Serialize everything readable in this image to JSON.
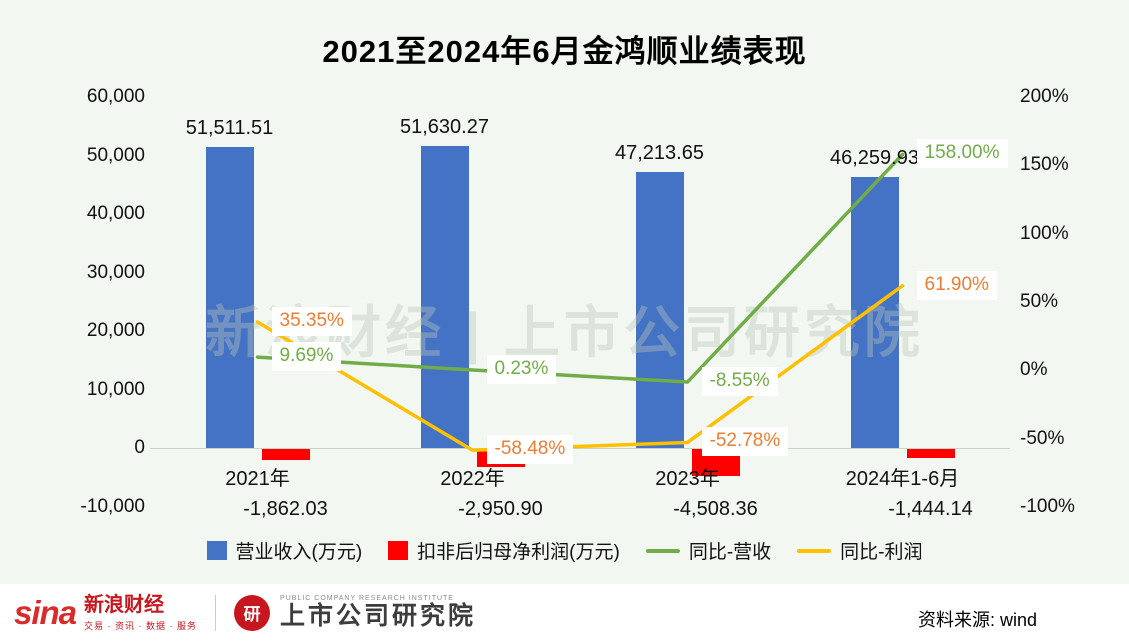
{
  "title": "2021至2024年6月金鸿顺业绩表现",
  "watermark": "新浪财经 | 上市公司研究院",
  "colors": {
    "background": "#f2f8f1",
    "revenue_bar": "#4472c4",
    "profit_bar": "#fe0000",
    "revenue_yoy_line": "#70ad47",
    "profit_yoy_line": "#ffc000",
    "revenue_yoy_label": "#70ad47",
    "profit_yoy_label": "#ed7d31"
  },
  "chart_data": {
    "type": "bar",
    "title": "2021至2024年6月金鸿顺业绩表现",
    "categories": [
      "2021年",
      "2022年",
      "2023年",
      "2024年1-6月"
    ],
    "series": [
      {
        "name": "营业收入(万元)",
        "type": "bar",
        "axis": "left",
        "values": [
          51511.51,
          51630.27,
          47213.65,
          46259.93
        ],
        "labels": [
          "51,511.51",
          "51,630.27",
          "47,213.65",
          "46,259.93"
        ]
      },
      {
        "name": "扣非后归母净利润(万元)",
        "type": "bar",
        "axis": "left",
        "values": [
          -1862.03,
          -2950.9,
          -4508.36,
          -1444.14
        ],
        "labels": [
          "-1,862.03",
          "-2,950.90",
          "-4,508.36",
          "-1,444.14"
        ]
      },
      {
        "name": "同比-营收",
        "type": "line",
        "axis": "right",
        "values": [
          9.69,
          0.23,
          -8.55,
          158.0
        ],
        "labels": [
          "9.69%",
          "0.23%",
          "-8.55%",
          "158.00%"
        ]
      },
      {
        "name": "同比-利润",
        "type": "line",
        "axis": "right",
        "values": [
          35.35,
          -58.48,
          -52.78,
          61.9
        ],
        "labels": [
          "35.35%",
          "-58.48%",
          "-52.78%",
          "61.90%"
        ]
      }
    ],
    "left_axis": {
      "min": -10000,
      "max": 60000,
      "ticks": [
        "60,000",
        "50,000",
        "40,000",
        "30,000",
        "20,000",
        "10,000",
        "0",
        "-10,000"
      ]
    },
    "right_axis": {
      "min": -100,
      "max": 200,
      "ticks": [
        "200%",
        "150%",
        "100%",
        "50%",
        "0%",
        "-50%",
        "-100%"
      ]
    },
    "grid": false,
    "legend_position": "bottom"
  },
  "legend": [
    {
      "label": "营业收入(万元)",
      "type": "bar",
      "color": "#4472c4"
    },
    {
      "label": "扣非后归母净利润(万元)",
      "type": "bar",
      "color": "#fe0000"
    },
    {
      "label": "同比-营收",
      "type": "line",
      "color": "#70ad47"
    },
    {
      "label": "同比-利润",
      "type": "line",
      "color": "#ffc000"
    }
  ],
  "footer": {
    "sina_word": "sina",
    "sina_brand": "新浪财经",
    "sina_tagline": "交易 · 资讯 · 数据 · 服务",
    "seal_glyph": "研",
    "institute_en": "PUBLIC COMPANY RESEARCH INSTITUTE",
    "institute_cn": "上市公司研究院",
    "source": "资料来源: wind"
  }
}
